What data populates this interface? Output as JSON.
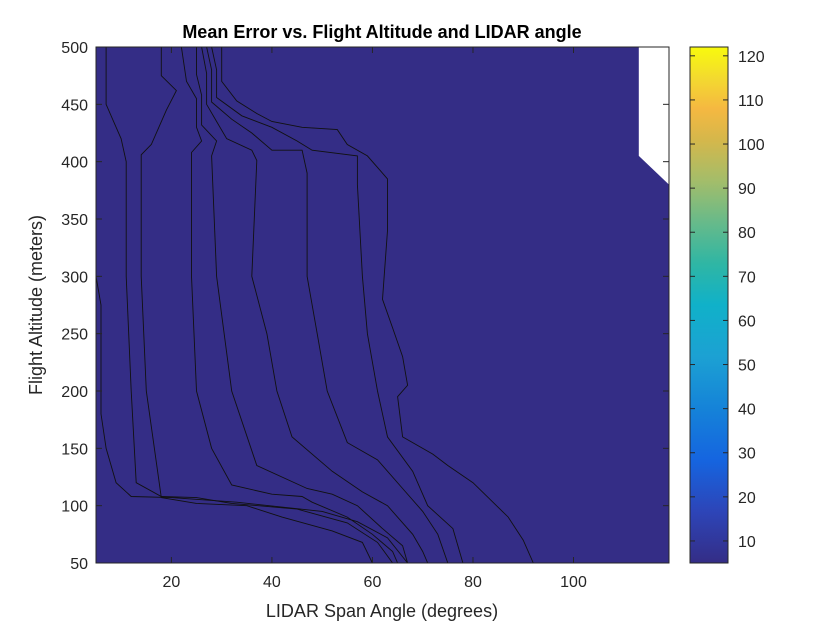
{
  "chart_data": {
    "type": "contourf",
    "title": "Mean Error vs. Flight Altitude and LIDAR angle",
    "xlabel": "LIDAR Span Angle (degrees)",
    "ylabel": "Flight Altitude (meters)",
    "xlim": [
      5,
      119
    ],
    "ylim": [
      50,
      500
    ],
    "xticks": [
      "20",
      "40",
      "60",
      "80",
      "100"
    ],
    "yticks": [
      "50",
      "100",
      "150",
      "200",
      "250",
      "300",
      "350",
      "400",
      "450",
      "500"
    ],
    "colorbar": {
      "range": [
        5,
        122
      ],
      "ticks": [
        "10",
        "20",
        "30",
        "40",
        "50",
        "60",
        "70",
        "80",
        "90",
        "100",
        "110",
        "120"
      ]
    },
    "no_data_region": [
      [
        113,
        500
      ],
      [
        119,
        500
      ],
      [
        119,
        380
      ],
      [
        113,
        405
      ]
    ],
    "contour_levels": [
      {
        "level": 100,
        "color": "#f5b841",
        "boundary": [
          [
            5,
            300
          ],
          [
            6,
            275
          ],
          [
            6,
            180
          ],
          [
            7,
            150
          ],
          [
            9,
            120
          ],
          [
            12,
            108
          ],
          [
            20,
            107
          ],
          [
            33,
            103
          ],
          [
            50,
            95
          ],
          [
            57,
            86
          ],
          [
            63,
            72
          ],
          [
            67,
            50
          ]
        ]
      },
      {
        "level": 90,
        "color": "#a3bd6a",
        "boundary": [
          [
            7,
            500
          ],
          [
            7,
            450
          ],
          [
            10,
            420
          ],
          [
            11,
            400
          ],
          [
            11,
            300
          ],
          [
            12,
            200
          ],
          [
            13,
            120
          ],
          [
            18,
            108
          ],
          [
            25,
            107
          ],
          [
            32,
            102
          ],
          [
            45,
            97
          ],
          [
            55,
            85
          ],
          [
            61,
            68
          ],
          [
            64,
            50
          ]
        ]
      },
      {
        "level": 80,
        "color": "#a3bd6a",
        "boundary": [
          [
            18,
            500
          ],
          [
            18,
            475
          ],
          [
            21,
            462
          ],
          [
            19,
            445
          ],
          [
            16,
            415
          ],
          [
            14,
            406
          ],
          [
            14,
            300
          ],
          [
            15,
            200
          ],
          [
            18,
            107
          ],
          [
            25,
            102
          ],
          [
            35,
            100
          ],
          [
            42,
            90
          ],
          [
            52,
            78
          ],
          [
            58,
            68
          ],
          [
            60,
            50
          ]
        ]
      },
      {
        "level": 70,
        "color": "#2fb6a4",
        "boundary": [
          [
            22,
            500
          ],
          [
            23,
            470
          ],
          [
            25,
            455
          ],
          [
            25,
            430
          ],
          [
            26,
            418
          ],
          [
            24,
            408
          ],
          [
            24,
            300
          ],
          [
            25,
            200
          ],
          [
            28,
            150
          ],
          [
            32,
            118
          ],
          [
            40,
            110
          ],
          [
            46,
            108
          ],
          [
            48,
            103
          ],
          [
            55,
            90
          ],
          [
            60,
            75
          ],
          [
            64,
            60
          ],
          [
            65,
            50
          ]
        ]
      },
      {
        "level": 60,
        "color": "#2fb6a4",
        "boundary": [
          [
            25,
            500
          ],
          [
            25,
            476
          ],
          [
            26,
            458
          ],
          [
            26,
            432
          ],
          [
            29,
            418
          ],
          [
            28,
            405
          ],
          [
            29,
            300
          ],
          [
            32,
            200
          ],
          [
            37,
            135
          ],
          [
            47,
            115
          ],
          [
            52,
            110
          ],
          [
            57,
            100
          ],
          [
            62,
            80
          ],
          [
            66,
            65
          ],
          [
            67,
            50
          ]
        ]
      },
      {
        "level": 50,
        "color": "#1ca1d3",
        "boundary": [
          [
            26,
            500
          ],
          [
            27,
            477
          ],
          [
            27,
            450
          ],
          [
            29,
            435
          ],
          [
            31,
            420
          ],
          [
            36,
            410
          ],
          [
            37,
            401
          ],
          [
            36,
            300
          ],
          [
            39,
            250
          ],
          [
            41,
            200
          ],
          [
            44,
            160
          ],
          [
            52,
            130
          ],
          [
            58,
            112
          ],
          [
            63,
            100
          ],
          [
            68,
            75
          ],
          [
            70,
            60
          ],
          [
            71,
            50
          ]
        ]
      },
      {
        "level": 40,
        "color": "#1ca1d3",
        "boundary": [
          [
            27,
            500
          ],
          [
            28,
            480
          ],
          [
            28,
            452
          ],
          [
            32,
            437
          ],
          [
            36,
            425
          ],
          [
            40,
            410
          ],
          [
            46,
            410
          ],
          [
            47,
            390
          ],
          [
            47,
            300
          ],
          [
            49,
            250
          ],
          [
            51,
            200
          ],
          [
            55,
            155
          ],
          [
            61,
            140
          ],
          [
            66,
            115
          ],
          [
            70,
            95
          ],
          [
            73,
            75
          ],
          [
            75,
            50
          ]
        ]
      },
      {
        "level": 30,
        "color": "#1565e0",
        "boundary": [
          [
            28,
            500
          ],
          [
            29,
            480
          ],
          [
            29,
            456
          ],
          [
            34,
            440
          ],
          [
            40,
            430
          ],
          [
            45,
            418
          ],
          [
            48,
            410
          ],
          [
            57,
            405
          ],
          [
            57,
            380
          ],
          [
            58,
            300
          ],
          [
            59,
            250
          ],
          [
            61,
            200
          ],
          [
            63,
            160
          ],
          [
            68,
            130
          ],
          [
            71,
            100
          ],
          [
            76,
            80
          ],
          [
            78,
            50
          ]
        ]
      },
      {
        "level": 20,
        "color": "#1565e0",
        "boundary": [
          [
            30,
            500
          ],
          [
            30,
            470
          ],
          [
            33,
            453
          ],
          [
            37,
            442
          ],
          [
            40,
            435
          ],
          [
            46,
            430
          ],
          [
            53,
            428
          ],
          [
            55,
            415
          ],
          [
            59,
            405
          ],
          [
            63,
            385
          ],
          [
            63,
            340
          ],
          [
            62,
            280
          ],
          [
            64,
            255
          ],
          [
            66,
            230
          ],
          [
            67,
            205
          ],
          [
            65,
            195
          ],
          [
            66,
            160
          ],
          [
            72,
            145
          ],
          [
            75,
            135
          ],
          [
            80,
            120
          ],
          [
            87,
            90
          ],
          [
            90,
            70
          ],
          [
            92,
            50
          ]
        ]
      },
      {
        "level": 10,
        "color": "#342d86",
        "boundary": []
      }
    ]
  }
}
